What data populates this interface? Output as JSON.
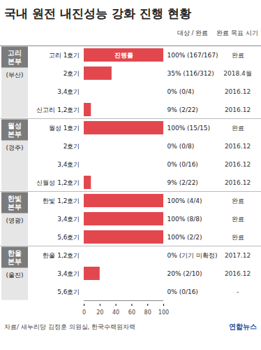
{
  "chart_data": {
    "type": "bar",
    "orientation": "horizontal",
    "title": "국내 원전 내진성능 강화 진행 현황",
    "column_labels": [
      "대상 / 완료",
      "완료 목표 시기"
    ],
    "categories": [
      "고리 1호기",
      "2호기",
      "3,4호기",
      "신고리 1,2호기",
      "월성 1호기",
      "2호기",
      "3,4호기",
      "신월성 1,2호기",
      "한빛 1,2호기",
      "3,4호기",
      "5,6호기",
      "한울 1,2호기",
      "3,4호기",
      "5,6호기"
    ],
    "values": [
      100,
      35,
      0,
      9,
      100,
      0,
      0,
      9,
      100,
      100,
      100,
      0,
      20,
      0
    ],
    "value_labels": [
      "100% (167/167)",
      "35% (116/312)",
      "0% (0/4)",
      "9% (2/22)",
      "100% (15/15)",
      "0% (0/8)",
      "0% (0/16)",
      "9% (2/22)",
      "100% (4/4)",
      "100% (8/8)",
      "100% (2/2)",
      "0% (기기 미확정)",
      "20% (2/10)",
      "0% (0/16)"
    ],
    "targets": [
      "완료",
      "2018.4월",
      "2016.12",
      "2016.12",
      "완료",
      "2016.12",
      "2016.12",
      "2016.12",
      "완료",
      "완료",
      "완료",
      "2017.12",
      "2016.12",
      "-"
    ],
    "groups": [
      "고리 본부",
      "고리 본부",
      "고리 본부",
      "고리 본부",
      "월성 본부",
      "월성 본부",
      "월성 본부",
      "월성 본부",
      "한빛 본부",
      "한빛 본부",
      "한빛 본부",
      "한울 본부",
      "한울 본부",
      "한울 본부"
    ],
    "group_places": [
      "(부산)",
      "(부산)",
      "(부산)",
      "(부산)",
      "(경주)",
      "(경주)",
      "(경주)",
      "(경주)",
      "(영광)",
      "(영광)",
      "(영광)",
      "(울진)",
      "(울진)",
      "(울진)"
    ],
    "bar_label": "진행률",
    "color": "#e3474e",
    "xlim": [
      0,
      100
    ],
    "xticks": [
      0,
      20,
      40,
      60,
      80,
      100
    ],
    "data_labels": true,
    "source": "자료/ 새누리당 김정훈 의원실, 한국수력원자력",
    "credit": "연합뉴스"
  }
}
